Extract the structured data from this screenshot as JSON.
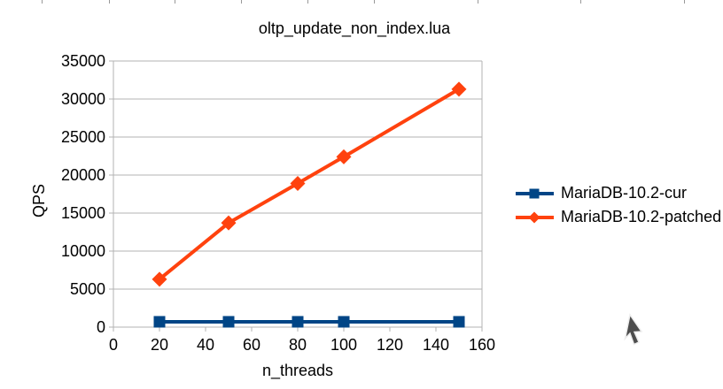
{
  "top_ruler": {
    "tick_positions": [
      47,
      123,
      197,
      272,
      347,
      422,
      539,
      655,
      772
    ],
    "color": "#999999"
  },
  "chart_data": {
    "type": "line",
    "title": "oltp_update_non_index.lua",
    "xlabel": "n_threads",
    "ylabel": "QPS",
    "x": [
      20,
      50,
      80,
      100,
      150
    ],
    "series": [
      {
        "name": "MariaDB-10.2-cur",
        "color": "#004586",
        "marker": "square",
        "values": [
          700,
          700,
          700,
          700,
          700
        ]
      },
      {
        "name": "MariaDB-10.2-patched",
        "color": "#ff420e",
        "marker": "diamond",
        "values": [
          6300,
          13700,
          18900,
          22400,
          31300
        ]
      }
    ],
    "xlim": [
      0,
      160
    ],
    "ylim": [
      0,
      35000
    ],
    "x_ticks": [
      0,
      20,
      40,
      60,
      80,
      100,
      120,
      140,
      160
    ],
    "y_ticks": [
      0,
      5000,
      10000,
      15000,
      20000,
      25000,
      30000,
      35000
    ],
    "grid": "horizontal",
    "legend_position": "right",
    "gridline_color": "#b3b3b3",
    "axis_color": "#b3b3b3",
    "text_color": "#000000",
    "line_width": 4
  },
  "cursor": {
    "fill": "#4d4d4d",
    "outline": "#ededed"
  }
}
